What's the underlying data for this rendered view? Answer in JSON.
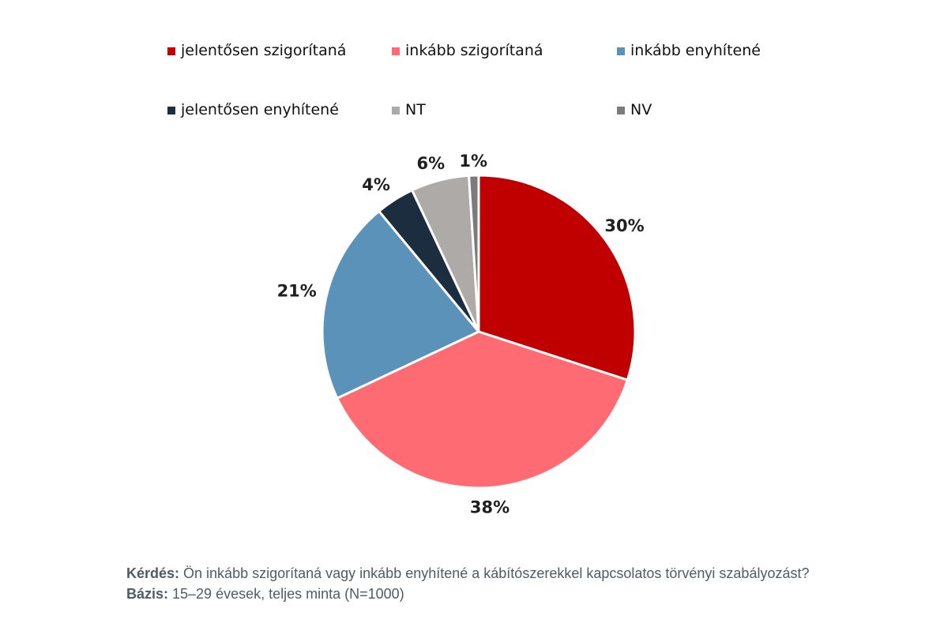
{
  "chart_data": {
    "type": "pie",
    "categories": [
      "jelentősen szigorítaná",
      "inkább szigorítaná",
      "inkább enyhítené",
      "jelentősen enyhítené",
      "NT",
      "NV"
    ],
    "values": [
      30,
      38,
      21,
      4,
      6,
      1
    ],
    "value_labels": [
      "30%",
      "38%",
      "21%",
      "4%",
      "6%",
      "1%"
    ],
    "colors": [
      "#c00000",
      "#ff6b73",
      "#5b92b9",
      "#1c2d3f",
      "#aeaaa8",
      "#7b7b7b"
    ],
    "start_angle_deg": 0,
    "direction": "clockwise",
    "legend_position": "top"
  },
  "footnotes": {
    "question_label": "Kérdés:",
    "question_text": " Ön inkább szigorítaná vagy inkább enyhítené a kábítószerekkel kapcsolatos törvényi szabályozást?",
    "base_label": "Bázis:",
    "base_text": " 15–29 évesek, teljes minta (N=1000)"
  }
}
